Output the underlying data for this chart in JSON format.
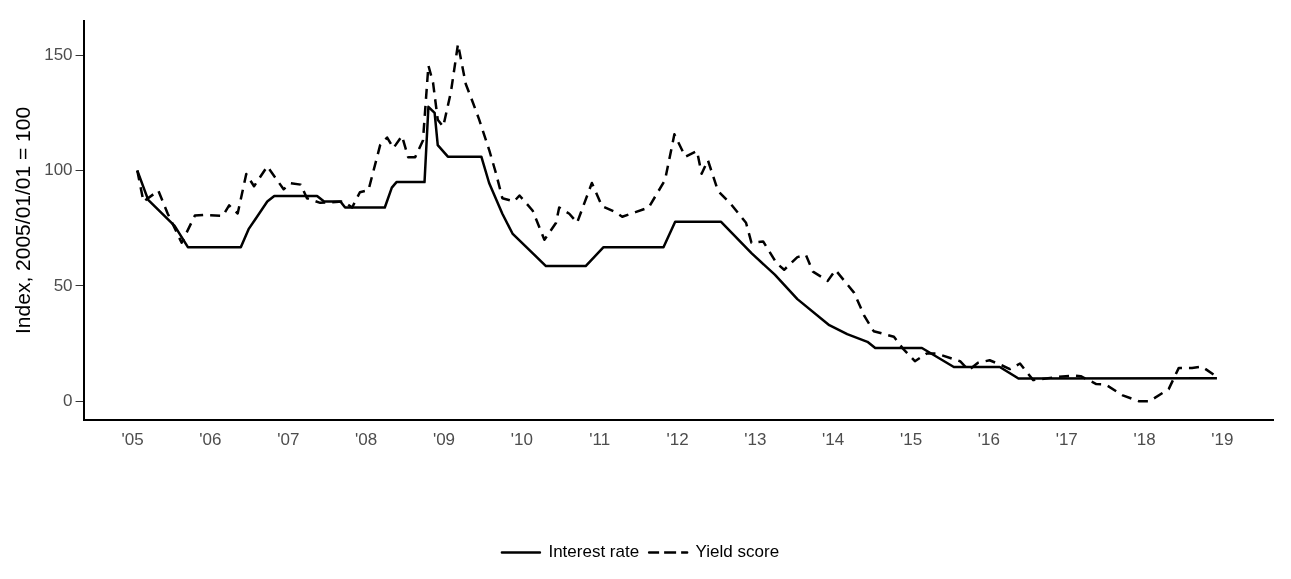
{
  "chart_data": {
    "type": "line",
    "ylabel": "Index, 2005/01/01 = 100",
    "xlim": [
      2004.37,
      2019.65
    ],
    "ylim": [
      -7.9,
      164.7
    ],
    "xticks": [
      {
        "value": 2005,
        "label": "'05"
      },
      {
        "value": 2006,
        "label": "'06"
      },
      {
        "value": 2007,
        "label": "'07"
      },
      {
        "value": 2008,
        "label": "'08"
      },
      {
        "value": 2009,
        "label": "'09"
      },
      {
        "value": 2010,
        "label": "'10"
      },
      {
        "value": 2011,
        "label": "'11"
      },
      {
        "value": 2012,
        "label": "'12"
      },
      {
        "value": 2013,
        "label": "'13"
      },
      {
        "value": 2014,
        "label": "'14"
      },
      {
        "value": 2015,
        "label": "'15"
      },
      {
        "value": 2016,
        "label": "'16"
      },
      {
        "value": 2017,
        "label": "'17"
      },
      {
        "value": 2018,
        "label": "'18"
      },
      {
        "value": 2019,
        "label": "'19"
      }
    ],
    "yticks": [
      0,
      50,
      100,
      150
    ],
    "grid": false,
    "legend": "bottom",
    "marker": "none",
    "series": [
      {
        "name": "Interest rate",
        "color": "#000000",
        "line_style": "solid",
        "x": [
          2005.06,
          2005.2,
          2005.54,
          2005.71,
          2006.39,
          2006.49,
          2006.73,
          2006.82,
          2007.37,
          2007.46,
          2007.67,
          2007.73,
          2008.24,
          2008.33,
          2008.39,
          2008.75,
          2008.8,
          2008.88,
          2008.92,
          2009.05,
          2009.48,
          2009.58,
          2009.75,
          2009.88,
          2010.31,
          2010.82,
          2011.05,
          2011.82,
          2011.97,
          2012.56,
          2012.95,
          2013.25,
          2013.54,
          2013.95,
          2014.18,
          2014.44,
          2014.54,
          2015.14,
          2015.55,
          2016.14,
          2016.38,
          2018.93
        ],
        "values": [
          100,
          87.3,
          76,
          66.8,
          66.8,
          74.6,
          86.6,
          89,
          89,
          86.6,
          86.6,
          84,
          84,
          92.6,
          95,
          95,
          127.6,
          125,
          111,
          106,
          106,
          94.6,
          81.3,
          72.7,
          58.6,
          58.6,
          66.8,
          66.8,
          77.8,
          77.8,
          64.2,
          54.9,
          44.3,
          33,
          29.1,
          25.8,
          23.1,
          23.1,
          14.9,
          14.9,
          9.9,
          10
        ]
      },
      {
        "name": "Yield score",
        "color": "#000000",
        "line_style": "dashed",
        "x": [
          2005.06,
          2005.14,
          2005.33,
          2005.45,
          2005.63,
          2005.8,
          2005.92,
          2006.16,
          2006.24,
          2006.35,
          2006.46,
          2006.56,
          2006.73,
          2006.94,
          2007.03,
          2007.16,
          2007.24,
          2007.41,
          2007.71,
          2007.82,
          2007.92,
          2008.03,
          2008.18,
          2008.27,
          2008.35,
          2008.46,
          2008.54,
          2008.63,
          2008.73,
          2008.8,
          2008.86,
          2008.92,
          2008.99,
          2009.09,
          2009.18,
          2009.28,
          2009.37,
          2009.45,
          2009.58,
          2009.67,
          2009.75,
          2009.9,
          2009.97,
          2010.14,
          2010.29,
          2010.44,
          2010.48,
          2010.61,
          2010.71,
          2010.9,
          2011.03,
          2011.2,
          2011.29,
          2011.46,
          2011.63,
          2011.84,
          2011.96,
          2012.1,
          2012.25,
          2012.31,
          2012.39,
          2012.52,
          2012.69,
          2012.88,
          2012.95,
          2013.1,
          2013.27,
          2013.37,
          2013.54,
          2013.65,
          2013.74,
          2013.93,
          2014.03,
          2014.27,
          2014.4,
          2014.52,
          2014.78,
          2014.89,
          2015.05,
          2015.2,
          2015.33,
          2015.63,
          2015.74,
          2015.86,
          2016.01,
          2016.14,
          2016.27,
          2016.4,
          2016.57,
          2016.86,
          2017.1,
          2017.18,
          2017.38,
          2017.5,
          2017.72,
          2017.93,
          2018.06,
          2018.31,
          2018.44,
          2018.61,
          2018.74,
          2018.93
        ],
        "values": [
          100,
          86.5,
          91.3,
          81.4,
          68.7,
          80.5,
          80.8,
          80.4,
          84.9,
          81.4,
          98.5,
          93.2,
          101.8,
          91.9,
          94.5,
          93.9,
          88,
          86,
          86.6,
          84,
          90.6,
          91.5,
          111,
          114.3,
          109.7,
          115,
          105.8,
          105.8,
          113,
          145.5,
          138,
          122,
          119,
          134.2,
          154.8,
          137.5,
          129.6,
          122.3,
          109,
          98.6,
          88,
          86.6,
          89.2,
          82.6,
          70,
          77.4,
          84,
          81.3,
          77.4,
          94.6,
          84.6,
          82,
          80,
          82,
          84,
          95.9,
          115.7,
          106,
          108.5,
          98.6,
          104.5,
          91.2,
          85.3,
          77.4,
          68.7,
          69.3,
          60,
          57,
          62.5,
          63.4,
          56.2,
          52.2,
          56.9,
          47,
          37,
          30.4,
          28,
          23.1,
          17.4,
          20.7,
          20.7,
          17.4,
          13.5,
          16.7,
          17.8,
          16,
          14,
          16.4,
          9.2,
          10.5,
          11.2,
          10.9,
          7.5,
          7.3,
          2.6,
          0,
          0,
          5.3,
          14.5,
          14.5,
          15,
          10.6
        ]
      }
    ]
  }
}
